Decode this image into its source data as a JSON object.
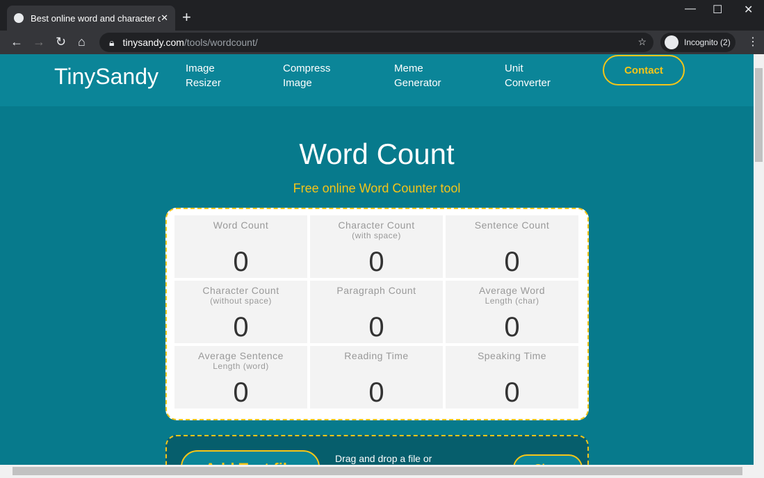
{
  "browser": {
    "tab_title": "Best online word and character c",
    "url_host": "tinysandy.com",
    "url_path": "/tools/wordcount/",
    "incognito": "Incognito (2)"
  },
  "header": {
    "logo": "TinySandy",
    "nav": [
      "Image\nResizer",
      "Compress\nImage",
      "Meme\nGenerator",
      "Unit\nConverter"
    ],
    "contact": "Contact"
  },
  "main": {
    "title": "Word Count",
    "subtitle": "Free online Word Counter tool",
    "stats": [
      {
        "label": "Word Count",
        "sub": "",
        "value": "0"
      },
      {
        "label": "Character Count",
        "sub": "(with space)",
        "value": "0"
      },
      {
        "label": "Sentence Count",
        "sub": "",
        "value": "0"
      },
      {
        "label": "Character Count",
        "sub": "(without space)",
        "value": "0"
      },
      {
        "label": "Paragraph Count",
        "sub": "",
        "value": "0"
      },
      {
        "label": "Average Word",
        "sub": "Length (char)",
        "value": "0"
      },
      {
        "label": "Average Sentence",
        "sub": "Length (word)",
        "value": "0"
      },
      {
        "label": "Reading Time",
        "sub": "",
        "value": "0"
      },
      {
        "label": "Speaking Time",
        "sub": "",
        "value": "0"
      }
    ],
    "drop": {
      "add_button": "Add Text file",
      "text": "Drag and drop a file or",
      "clear_button": "Clear"
    }
  },
  "colors": {
    "accent": "#f5c518",
    "background": "#077a8c"
  }
}
